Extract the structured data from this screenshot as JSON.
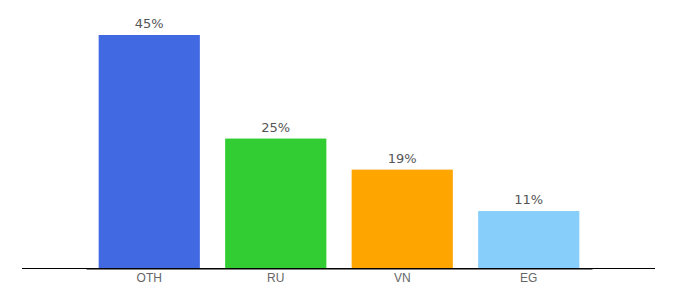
{
  "chart_data": {
    "type": "bar",
    "categories": [
      "OTH",
      "RU",
      "VN",
      "EG"
    ],
    "values": [
      45,
      25,
      19,
      11
    ],
    "value_labels": [
      "45%",
      "25%",
      "19%",
      "11%"
    ],
    "colors": [
      "#4169e1",
      "#32cd32",
      "#ffa500",
      "#87cefa"
    ],
    "ylim": [
      0,
      45
    ],
    "data_labels": true,
    "tick_labels": "x"
  }
}
